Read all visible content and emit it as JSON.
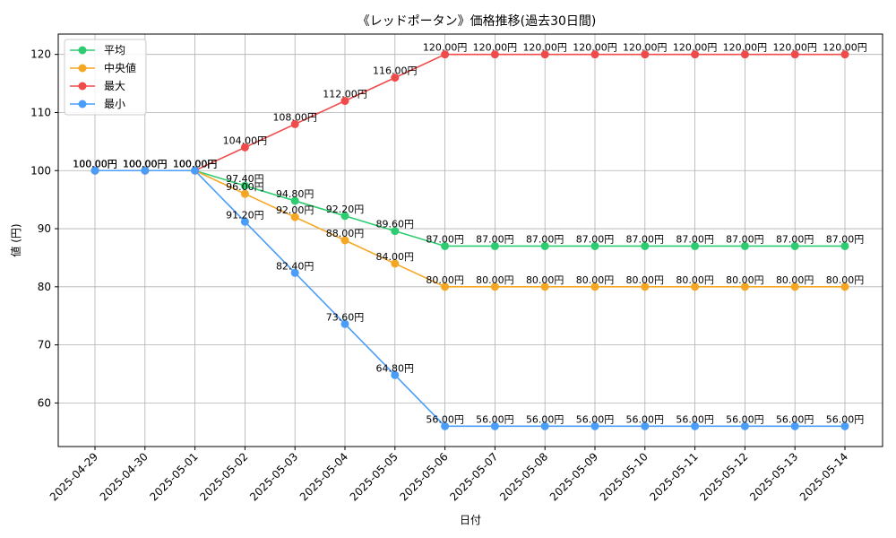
{
  "chart_data": {
    "type": "line",
    "title": "《レッドポータン》価格推移(過去30日間)",
    "xlabel": "日付",
    "ylabel": "値 (円)",
    "ylim": [
      52.5,
      123.5
    ],
    "yticks": [
      60,
      70,
      80,
      90,
      100,
      110,
      120
    ],
    "grid": true,
    "legend_position": "top-left",
    "label_suffix": "円",
    "categories": [
      "2025-04-29",
      "2025-04-30",
      "2025-05-01",
      "2025-05-02",
      "2025-05-03",
      "2025-05-04",
      "2025-05-05",
      "2025-05-06",
      "2025-05-07",
      "2025-05-08",
      "2025-05-09",
      "2025-05-10",
      "2025-05-11",
      "2025-05-12",
      "2025-05-13",
      "2025-05-14"
    ],
    "series": [
      {
        "name": "平均",
        "color": "#2ecc71",
        "values": [
          100,
          100,
          100,
          97.4,
          94.8,
          92.2,
          89.6,
          87,
          87,
          87,
          87,
          87,
          87,
          87,
          87,
          87
        ]
      },
      {
        "name": "中央値",
        "color": "#f5a623",
        "values": [
          100,
          100,
          100,
          96,
          92,
          88,
          84,
          80,
          80,
          80,
          80,
          80,
          80,
          80,
          80,
          80
        ]
      },
      {
        "name": "最大",
        "color": "#ef4b4b",
        "values": [
          100,
          100,
          100,
          104,
          108,
          112,
          116,
          120,
          120,
          120,
          120,
          120,
          120,
          120,
          120,
          120
        ]
      },
      {
        "name": "最小",
        "color": "#4a9df8",
        "values": [
          100,
          100,
          100,
          91.2,
          82.4,
          73.6,
          64.8,
          56,
          56,
          56,
          56,
          56,
          56,
          56,
          56,
          56
        ]
      }
    ]
  }
}
